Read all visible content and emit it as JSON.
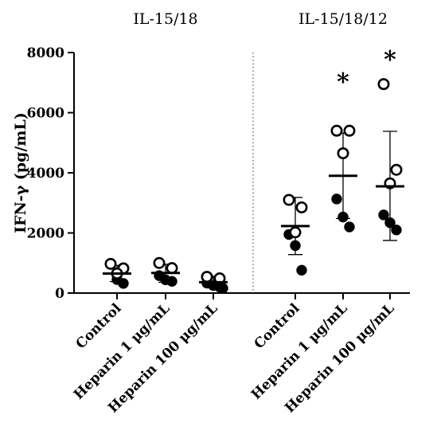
{
  "chart_data": {
    "type": "scatter",
    "ylabel": "IFN-γ (pg/mL)",
    "ylim": [
      0,
      8000
    ],
    "yticks": [
      "0",
      "2000",
      "4000",
      "6000",
      "8000"
    ],
    "groups": [
      {
        "label": "IL-15/18",
        "categories": [
          {
            "name": "Control",
            "mean": 650,
            "sd_low": 380,
            "sd_high": 920,
            "open": [
              970,
              820,
              650
            ],
            "filled": [
              960,
              450,
              320
            ],
            "annotation": ""
          },
          {
            "name": "Heparin 1 μg/mL",
            "mean": 670,
            "sd_low": 360,
            "sd_high": 960,
            "open": [
              1000,
              830
            ],
            "filled": [
              580,
              440,
              390
            ],
            "annotation": ""
          },
          {
            "name": "Heparin 100 μg/mL",
            "mean": 360,
            "sd_low": 180,
            "sd_high": 560,
            "open": [
              540,
              490
            ],
            "filled": [
              330,
              250,
              200,
              160
            ],
            "annotation": ""
          }
        ]
      },
      {
        "label": "IL-15/18/12",
        "categories": [
          {
            "name": "Control",
            "mean": 2230,
            "sd_low": 1280,
            "sd_high": 3180,
            "open": [
              3100,
              2850,
              2020
            ],
            "filled": [
              1950,
              1580,
              760
            ],
            "annotation": ""
          },
          {
            "name": "Heparin 1 μg/mL",
            "mean": 3900,
            "sd_low": 2480,
            "sd_high": 5320,
            "open": [
              5400,
              5400,
              4650
            ],
            "filled": [
              3130,
              2530,
              2200
            ],
            "annotation": "*"
          },
          {
            "name": "Heparin 100 μg/mL",
            "mean": 3550,
            "sd_low": 1750,
            "sd_high": 5380,
            "open": [
              6950,
              4100,
              3650
            ],
            "filled": [
              2600,
              2340,
              2100
            ],
            "annotation": "*"
          }
        ]
      }
    ],
    "divider": "dotted"
  }
}
